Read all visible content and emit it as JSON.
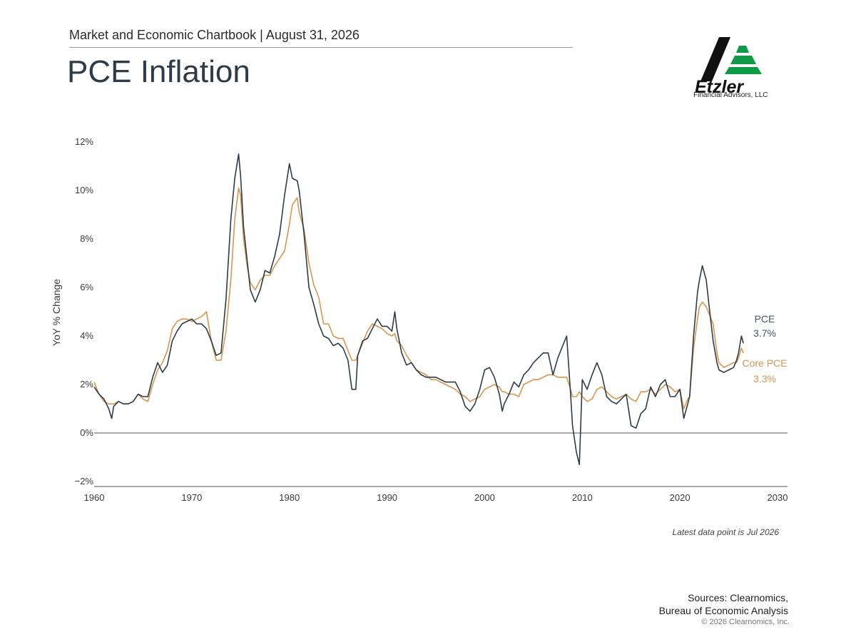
{
  "header": {
    "subtitle": "Market and Economic Chartbook | August 31, 2026",
    "title": "PCE Inflation"
  },
  "logo": {
    "wordmark": "Etzler",
    "tagline": "Financial Advisors, LLC",
    "colors": {
      "dark": "#111111",
      "green": "#0f9a46"
    }
  },
  "chart_data": {
    "type": "line",
    "ylabel": "YoY % Change",
    "xlim": [
      1960,
      2030
    ],
    "ylim": [
      -2,
      12
    ],
    "x_ticks": [
      1960,
      1970,
      1980,
      1990,
      2000,
      2010,
      2020,
      2030
    ],
    "y_ticks": [
      -2,
      0,
      2,
      4,
      6,
      8,
      10,
      12
    ],
    "grid": false,
    "series": [
      {
        "name": "PCE",
        "end_label": "3.7%",
        "color": "#2e3b48",
        "points": [
          [
            1960.0,
            1.9
          ],
          [
            1960.5,
            1.6
          ],
          [
            1961.0,
            1.4
          ],
          [
            1961.5,
            1.0
          ],
          [
            1961.8,
            0.6
          ],
          [
            1962.0,
            1.1
          ],
          [
            1962.5,
            1.3
          ],
          [
            1963.0,
            1.2
          ],
          [
            1963.5,
            1.2
          ],
          [
            1964.0,
            1.3
          ],
          [
            1964.5,
            1.6
          ],
          [
            1965.0,
            1.5
          ],
          [
            1965.5,
            1.5
          ],
          [
            1966.0,
            2.3
          ],
          [
            1966.5,
            2.9
          ],
          [
            1967.0,
            2.5
          ],
          [
            1967.5,
            2.8
          ],
          [
            1968.0,
            3.8
          ],
          [
            1968.5,
            4.2
          ],
          [
            1969.0,
            4.5
          ],
          [
            1969.5,
            4.6
          ],
          [
            1970.0,
            4.7
          ],
          [
            1970.5,
            4.5
          ],
          [
            1971.0,
            4.5
          ],
          [
            1971.5,
            4.3
          ],
          [
            1972.0,
            3.8
          ],
          [
            1972.5,
            3.2
          ],
          [
            1973.0,
            3.3
          ],
          [
            1973.5,
            5.5
          ],
          [
            1974.0,
            8.8
          ],
          [
            1974.4,
            10.5
          ],
          [
            1974.8,
            11.5
          ],
          [
            1975.0,
            10.6
          ],
          [
            1975.3,
            8.5
          ],
          [
            1975.7,
            7.0
          ],
          [
            1976.0,
            5.9
          ],
          [
            1976.5,
            5.4
          ],
          [
            1977.0,
            5.9
          ],
          [
            1977.5,
            6.7
          ],
          [
            1978.0,
            6.6
          ],
          [
            1978.5,
            7.3
          ],
          [
            1979.0,
            8.2
          ],
          [
            1979.5,
            9.8
          ],
          [
            1980.0,
            11.1
          ],
          [
            1980.3,
            10.5
          ],
          [
            1980.8,
            10.4
          ],
          [
            1981.0,
            10.0
          ],
          [
            1981.5,
            8.2
          ],
          [
            1982.0,
            6.0
          ],
          [
            1982.5,
            5.3
          ],
          [
            1983.0,
            4.5
          ],
          [
            1983.5,
            4.0
          ],
          [
            1984.0,
            3.9
          ],
          [
            1984.5,
            3.6
          ],
          [
            1985.0,
            3.7
          ],
          [
            1985.5,
            3.5
          ],
          [
            1986.0,
            3.0
          ],
          [
            1986.4,
            1.8
          ],
          [
            1986.8,
            1.8
          ],
          [
            1987.0,
            3.2
          ],
          [
            1987.5,
            3.8
          ],
          [
            1988.0,
            3.9
          ],
          [
            1988.5,
            4.3
          ],
          [
            1989.0,
            4.7
          ],
          [
            1989.5,
            4.4
          ],
          [
            1990.0,
            4.4
          ],
          [
            1990.5,
            4.2
          ],
          [
            1990.8,
            5.0
          ],
          [
            1991.0,
            4.3
          ],
          [
            1991.5,
            3.3
          ],
          [
            1992.0,
            2.8
          ],
          [
            1992.5,
            2.9
          ],
          [
            1993.0,
            2.6
          ],
          [
            1993.5,
            2.4
          ],
          [
            1994.0,
            2.3
          ],
          [
            1994.5,
            2.3
          ],
          [
            1995.0,
            2.3
          ],
          [
            1995.5,
            2.2
          ],
          [
            1996.0,
            2.1
          ],
          [
            1996.5,
            2.1
          ],
          [
            1997.0,
            2.1
          ],
          [
            1997.5,
            1.7
          ],
          [
            1998.0,
            1.1
          ],
          [
            1998.5,
            0.9
          ],
          [
            1999.0,
            1.2
          ],
          [
            1999.5,
            1.8
          ],
          [
            2000.0,
            2.6
          ],
          [
            2000.5,
            2.7
          ],
          [
            2001.0,
            2.3
          ],
          [
            2001.5,
            1.6
          ],
          [
            2001.8,
            0.9
          ],
          [
            2002.0,
            1.2
          ],
          [
            2002.5,
            1.6
          ],
          [
            2003.0,
            2.1
          ],
          [
            2003.5,
            1.9
          ],
          [
            2004.0,
            2.4
          ],
          [
            2004.5,
            2.6
          ],
          [
            2005.0,
            2.9
          ],
          [
            2005.5,
            3.1
          ],
          [
            2006.0,
            3.3
          ],
          [
            2006.5,
            3.3
          ],
          [
            2007.0,
            2.4
          ],
          [
            2007.5,
            3.1
          ],
          [
            2008.0,
            3.6
          ],
          [
            2008.4,
            4.0
          ],
          [
            2008.8,
            1.6
          ],
          [
            2009.0,
            0.3
          ],
          [
            2009.4,
            -0.8
          ],
          [
            2009.7,
            -1.3
          ],
          [
            2010.0,
            2.2
          ],
          [
            2010.5,
            1.8
          ],
          [
            2011.0,
            2.4
          ],
          [
            2011.5,
            2.9
          ],
          [
            2012.0,
            2.4
          ],
          [
            2012.5,
            1.5
          ],
          [
            2013.0,
            1.3
          ],
          [
            2013.5,
            1.2
          ],
          [
            2014.0,
            1.4
          ],
          [
            2014.5,
            1.6
          ],
          [
            2015.0,
            0.3
          ],
          [
            2015.5,
            0.2
          ],
          [
            2016.0,
            0.8
          ],
          [
            2016.5,
            1.0
          ],
          [
            2017.0,
            1.9
          ],
          [
            2017.5,
            1.5
          ],
          [
            2018.0,
            2.0
          ],
          [
            2018.5,
            2.2
          ],
          [
            2019.0,
            1.5
          ],
          [
            2019.5,
            1.5
          ],
          [
            2020.0,
            1.8
          ],
          [
            2020.4,
            0.6
          ],
          [
            2020.8,
            1.2
          ],
          [
            2021.0,
            1.5
          ],
          [
            2021.4,
            4.0
          ],
          [
            2021.8,
            5.8
          ],
          [
            2022.0,
            6.3
          ],
          [
            2022.3,
            6.9
          ],
          [
            2022.7,
            6.3
          ],
          [
            2023.0,
            5.2
          ],
          [
            2023.4,
            3.8
          ],
          [
            2023.8,
            2.9
          ],
          [
            2024.0,
            2.6
          ],
          [
            2024.5,
            2.5
          ],
          [
            2025.0,
            2.6
          ],
          [
            2025.5,
            2.7
          ],
          [
            2025.8,
            3.0
          ],
          [
            2026.0,
            3.3
          ],
          [
            2026.3,
            4.0
          ],
          [
            2026.5,
            3.7
          ]
        ]
      },
      {
        "name": "Core PCE",
        "end_label": "3.3%",
        "color": "#d4974f",
        "points": [
          [
            1960.0,
            2.1
          ],
          [
            1960.5,
            1.6
          ],
          [
            1961.0,
            1.3
          ],
          [
            1961.5,
            1.2
          ],
          [
            1962.0,
            1.2
          ],
          [
            1962.5,
            1.3
          ],
          [
            1963.0,
            1.2
          ],
          [
            1963.5,
            1.2
          ],
          [
            1964.0,
            1.3
          ],
          [
            1964.5,
            1.6
          ],
          [
            1965.0,
            1.4
          ],
          [
            1965.5,
            1.3
          ],
          [
            1966.0,
            2.0
          ],
          [
            1966.5,
            2.6
          ],
          [
            1967.0,
            2.9
          ],
          [
            1967.5,
            3.4
          ],
          [
            1968.0,
            4.3
          ],
          [
            1968.5,
            4.6
          ],
          [
            1969.0,
            4.7
          ],
          [
            1969.5,
            4.7
          ],
          [
            1970.0,
            4.6
          ],
          [
            1970.5,
            4.7
          ],
          [
            1971.0,
            4.8
          ],
          [
            1971.5,
            5.0
          ],
          [
            1972.0,
            3.8
          ],
          [
            1972.5,
            3.0
          ],
          [
            1973.0,
            3.0
          ],
          [
            1973.5,
            4.2
          ],
          [
            1974.0,
            6.3
          ],
          [
            1974.4,
            8.8
          ],
          [
            1974.8,
            10.1
          ],
          [
            1975.0,
            9.8
          ],
          [
            1975.3,
            8.0
          ],
          [
            1975.7,
            6.8
          ],
          [
            1976.0,
            6.2
          ],
          [
            1976.5,
            5.9
          ],
          [
            1977.0,
            6.3
          ],
          [
            1977.5,
            6.5
          ],
          [
            1978.0,
            6.5
          ],
          [
            1978.5,
            6.9
          ],
          [
            1979.0,
            7.2
          ],
          [
            1979.5,
            7.5
          ],
          [
            1980.0,
            8.6
          ],
          [
            1980.3,
            9.4
          ],
          [
            1980.8,
            9.7
          ],
          [
            1981.0,
            9.1
          ],
          [
            1981.5,
            8.4
          ],
          [
            1982.0,
            7.0
          ],
          [
            1982.5,
            6.1
          ],
          [
            1983.0,
            5.6
          ],
          [
            1983.5,
            4.5
          ],
          [
            1984.0,
            4.5
          ],
          [
            1984.5,
            4.0
          ],
          [
            1985.0,
            3.9
          ],
          [
            1985.5,
            3.9
          ],
          [
            1986.0,
            3.4
          ],
          [
            1986.4,
            3.0
          ],
          [
            1986.8,
            3.0
          ],
          [
            1987.0,
            3.2
          ],
          [
            1987.5,
            3.7
          ],
          [
            1988.0,
            4.2
          ],
          [
            1988.5,
            4.5
          ],
          [
            1989.0,
            4.4
          ],
          [
            1989.5,
            4.3
          ],
          [
            1990.0,
            4.1
          ],
          [
            1990.5,
            4.0
          ],
          [
            1990.8,
            4.1
          ],
          [
            1991.0,
            3.8
          ],
          [
            1991.5,
            3.6
          ],
          [
            1992.0,
            3.2
          ],
          [
            1992.5,
            2.9
          ],
          [
            1993.0,
            2.6
          ],
          [
            1993.5,
            2.5
          ],
          [
            1994.0,
            2.4
          ],
          [
            1994.5,
            2.2
          ],
          [
            1995.0,
            2.2
          ],
          [
            1995.5,
            2.1
          ],
          [
            1996.0,
            2.0
          ],
          [
            1996.5,
            1.9
          ],
          [
            1997.0,
            1.8
          ],
          [
            1997.5,
            1.6
          ],
          [
            1998.0,
            1.5
          ],
          [
            1998.5,
            1.3
          ],
          [
            1999.0,
            1.4
          ],
          [
            1999.5,
            1.5
          ],
          [
            2000.0,
            1.8
          ],
          [
            2000.5,
            1.9
          ],
          [
            2001.0,
            2.0
          ],
          [
            2001.5,
            1.9
          ],
          [
            2001.8,
            1.7
          ],
          [
            2002.0,
            1.7
          ],
          [
            2002.5,
            1.6
          ],
          [
            2003.0,
            1.6
          ],
          [
            2003.5,
            1.5
          ],
          [
            2004.0,
            2.0
          ],
          [
            2004.5,
            2.1
          ],
          [
            2005.0,
            2.2
          ],
          [
            2005.5,
            2.2
          ],
          [
            2006.0,
            2.3
          ],
          [
            2006.5,
            2.4
          ],
          [
            2007.0,
            2.4
          ],
          [
            2007.5,
            2.3
          ],
          [
            2008.0,
            2.3
          ],
          [
            2008.4,
            2.3
          ],
          [
            2008.8,
            1.8
          ],
          [
            2009.0,
            1.5
          ],
          [
            2009.4,
            1.5
          ],
          [
            2009.7,
            1.7
          ],
          [
            2010.0,
            1.5
          ],
          [
            2010.5,
            1.3
          ],
          [
            2011.0,
            1.4
          ],
          [
            2011.5,
            1.8
          ],
          [
            2012.0,
            1.9
          ],
          [
            2012.5,
            1.7
          ],
          [
            2013.0,
            1.5
          ],
          [
            2013.5,
            1.4
          ],
          [
            2014.0,
            1.5
          ],
          [
            2014.5,
            1.6
          ],
          [
            2015.0,
            1.4
          ],
          [
            2015.5,
            1.3
          ],
          [
            2016.0,
            1.7
          ],
          [
            2016.5,
            1.7
          ],
          [
            2017.0,
            1.8
          ],
          [
            2017.5,
            1.6
          ],
          [
            2018.0,
            1.8
          ],
          [
            2018.5,
            2.0
          ],
          [
            2019.0,
            1.9
          ],
          [
            2019.5,
            1.7
          ],
          [
            2020.0,
            1.8
          ],
          [
            2020.4,
            1.0
          ],
          [
            2020.8,
            1.4
          ],
          [
            2021.0,
            1.5
          ],
          [
            2021.4,
            3.5
          ],
          [
            2021.8,
            4.7
          ],
          [
            2022.0,
            5.2
          ],
          [
            2022.3,
            5.4
          ],
          [
            2022.7,
            5.2
          ],
          [
            2023.0,
            4.9
          ],
          [
            2023.4,
            4.5
          ],
          [
            2023.8,
            3.3
          ],
          [
            2024.0,
            2.9
          ],
          [
            2024.5,
            2.7
          ],
          [
            2025.0,
            2.8
          ],
          [
            2025.5,
            2.9
          ],
          [
            2025.8,
            2.9
          ],
          [
            2026.0,
            3.1
          ],
          [
            2026.3,
            3.5
          ],
          [
            2026.5,
            3.3
          ]
        ]
      }
    ]
  },
  "footnote": "Latest data point is Jul 2026",
  "sources": {
    "line1": "Sources: Clearnomics,",
    "line2": "Bureau of Economic Analysis"
  },
  "copyright": "© 2026 Clearnomics, Inc."
}
